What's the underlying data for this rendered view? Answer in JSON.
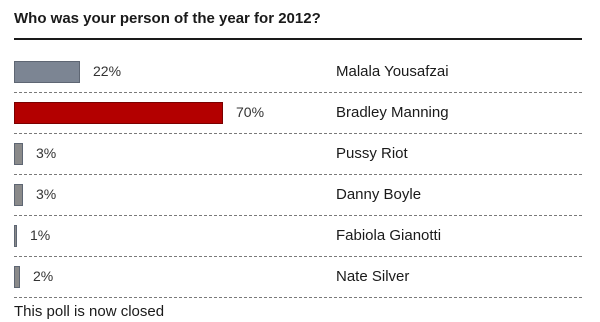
{
  "poll": {
    "title": "Who was your person of the year for 2012?",
    "status": "This poll is now closed"
  },
  "colors": {
    "default_bar": "#7c8593",
    "winner_bar": "#b30000",
    "small_bar": "#8a8a8a"
  },
  "chart_data": {
    "type": "bar",
    "orientation": "horizontal",
    "title": "Who was your person of the year for 2012?",
    "categories": [
      "Malala Yousafzai",
      "Bradley Manning",
      "Pussy Riot",
      "Danny Boyle",
      "Fabiola Gianotti",
      "Nate Silver"
    ],
    "values": [
      22,
      70,
      3,
      3,
      1,
      2
    ],
    "value_labels": [
      "22%",
      "70%",
      "3%",
      "3%",
      "1%",
      "2%"
    ],
    "unit": "%",
    "xlim": [
      0,
      70
    ],
    "highlight_index": 1,
    "grid": false,
    "legend": "none"
  }
}
